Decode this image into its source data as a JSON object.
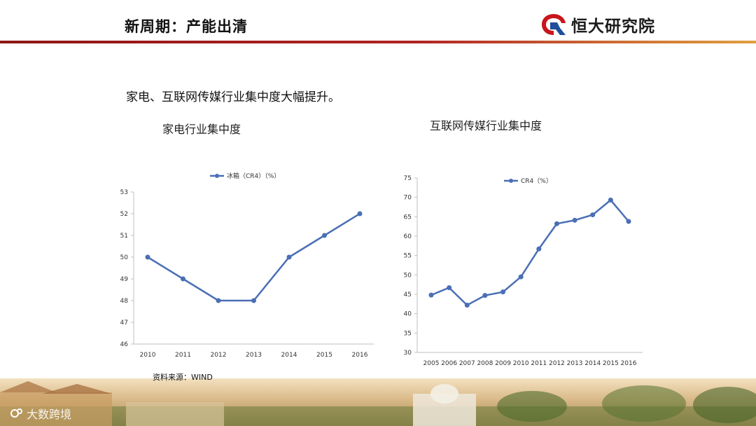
{
  "header": {
    "title": "新周期：产能出清",
    "brand": "恒大研究院",
    "colors": {
      "rule": "#b22222",
      "logo_red": "#c8161d",
      "logo_blue": "#1f4e9c"
    }
  },
  "intro_text": "家电、互联网传媒行业集中度大幅提升。",
  "footer": {
    "source": "资料来源：WIND",
    "watermark": "大数跨境"
  },
  "chart_data": [
    {
      "type": "line",
      "title": "家电行业集中度",
      "x": [
        "2010",
        "2011",
        "2012",
        "2013",
        "2014",
        "2015",
        "2016"
      ],
      "series": [
        {
          "name": "冰箱（CR4）（%）",
          "values": [
            50,
            49,
            48,
            48,
            50,
            51,
            52
          ]
        }
      ],
      "ylim": [
        46,
        53
      ],
      "yticks": [
        "46",
        "47",
        "48",
        "49",
        "50",
        "51",
        "52",
        "53"
      ],
      "grid": false,
      "legend": "top",
      "color": "#4a6fb5"
    },
    {
      "type": "line",
      "title": "互联网传媒行业集中度",
      "x": [
        "2005",
        "2006",
        "2007",
        "2008",
        "2009",
        "2010",
        "2011",
        "2012",
        "2013",
        "2014",
        "2015",
        "2016"
      ],
      "series": [
        {
          "name": "CR4（%）",
          "values": [
            44.8,
            46.7,
            42.2,
            44.7,
            45.6,
            49.5,
            56.7,
            63.2,
            64.1,
            65.5,
            69.3,
            63.8
          ]
        }
      ],
      "ylim": [
        30,
        75
      ],
      "yticks": [
        "30",
        "35",
        "40",
        "45",
        "50",
        "55",
        "60",
        "65",
        "70",
        "75"
      ],
      "grid": false,
      "legend": "top",
      "color": "#4a6fb5"
    }
  ]
}
